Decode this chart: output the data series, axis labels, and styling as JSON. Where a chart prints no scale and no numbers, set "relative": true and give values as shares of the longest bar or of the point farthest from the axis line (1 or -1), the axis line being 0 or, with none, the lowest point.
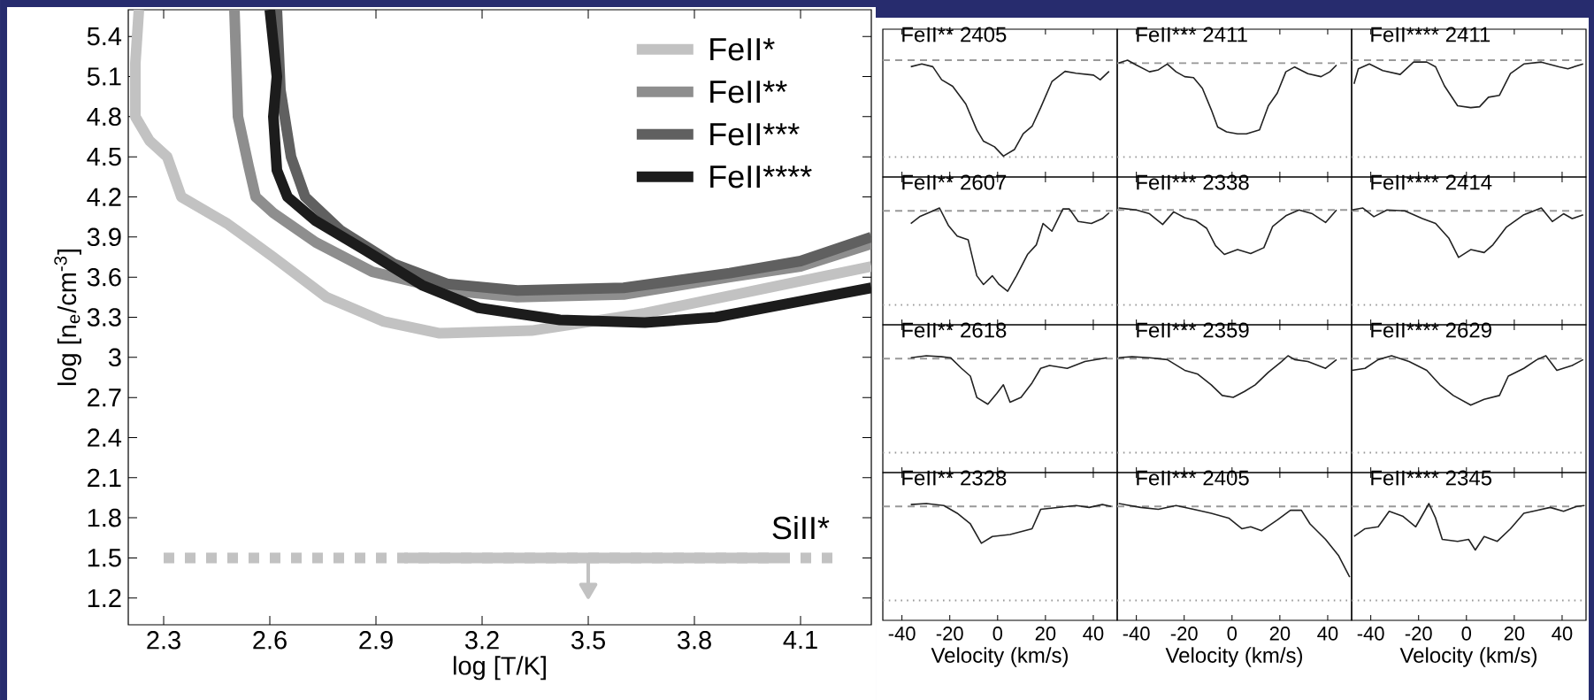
{
  "chart_data": [
    {
      "type": "line",
      "xlabel": "log [T/K]",
      "ylabel": "log [n$_{e}$/cm$^{-3}$]",
      "xlim": [
        2.2,
        4.3
      ],
      "ylim": [
        1.0,
        5.6
      ],
      "xticks": [
        2.3,
        2.6,
        2.9,
        3.2,
        3.5,
        3.8,
        4.1
      ],
      "yticks": [
        1.2,
        1.5,
        1.8,
        2.1,
        2.4,
        2.7,
        3,
        3.3,
        3.6,
        3.9,
        4.2,
        4.5,
        4.8,
        5.1,
        5.4
      ],
      "legend": "top right",
      "line_style": "solid",
      "series": [
        {
          "name": "FeII*",
          "color": "#c2c2c2",
          "x": [
            2.23,
            2.22,
            2.22,
            2.26,
            2.31,
            2.35,
            2.48,
            2.61,
            2.76,
            2.92,
            3.08,
            3.34,
            3.66,
            3.97,
            4.3
          ],
          "values": [
            5.6,
            5.2,
            4.8,
            4.62,
            4.5,
            4.2,
            4.0,
            3.75,
            3.45,
            3.27,
            3.18,
            3.2,
            3.33,
            3.5,
            3.68
          ]
        },
        {
          "name": "FeII**",
          "color": "#8e8e8e",
          "x": [
            2.5,
            2.51,
            2.54,
            2.56,
            2.61,
            2.73,
            2.89,
            3.11,
            3.3,
            3.6,
            3.9,
            4.1,
            4.3
          ],
          "values": [
            5.6,
            4.8,
            4.43,
            4.2,
            4.08,
            3.86,
            3.64,
            3.5,
            3.45,
            3.47,
            3.6,
            3.68,
            3.85
          ]
        },
        {
          "name": "FeII***",
          "color": "#606060",
          "x": [
            2.62,
            2.63,
            2.66,
            2.7,
            2.8,
            2.95,
            3.1,
            3.3,
            3.6,
            3.9,
            4.1,
            4.3
          ],
          "values": [
            5.6,
            5.0,
            4.5,
            4.2,
            3.95,
            3.7,
            3.55,
            3.5,
            3.52,
            3.63,
            3.72,
            3.9
          ]
        },
        {
          "name": "FeII****",
          "color": "#1c1c1c",
          "x": [
            2.6,
            2.62,
            2.61,
            2.62,
            2.65,
            2.73,
            2.87,
            3.03,
            3.19,
            3.42,
            3.66,
            3.86,
            4.08,
            4.3
          ],
          "values": [
            5.6,
            5.1,
            4.8,
            4.4,
            4.2,
            4.02,
            3.8,
            3.54,
            3.37,
            3.28,
            3.26,
            3.3,
            3.41,
            3.52
          ]
        },
        {
          "name": "SiII*",
          "color": "#c2c2c2",
          "line_style": "dashed",
          "x": [
            2.3,
            4.2
          ],
          "values": [
            1.5,
            1.5
          ]
        },
        {
          "color": "#c2c2c2",
          "x": [
            2.98,
            4.04
          ],
          "values": [
            1.5,
            1.5
          ]
        },
        {
          "color": "#c2c2c2",
          "marker": "triangle",
          "x": [
            3.5,
            3.5
          ],
          "values": [
            1.5,
            1.27
          ]
        }
      ]
    },
    {
      "type": "line",
      "relative": true,
      "title": "FeII** 2405",
      "xlim": [
        -48,
        50
      ],
      "xticks": [
        -40,
        -20,
        0,
        20,
        40
      ],
      "tick_labels": false,
      "ref_lines": [
        {
          "axis": "y",
          "value": 1.04,
          "line_style": "dashed",
          "color": "#999999"
        },
        {
          "axis": "y",
          "value": 0,
          "line_style": "dotted",
          "color": "#999999"
        }
      ],
      "series": [
        {
          "color": "#222222",
          "x": [
            -36.3,
            -31.7,
            -27.1,
            -23.4,
            -18.8,
            -13.3,
            -8.7,
            -5.9,
            -1.3,
            2.4,
            7.0,
            10.7,
            14.4,
            18.0,
            22.7,
            28.2,
            32.8,
            40.1,
            42.9,
            46.6
          ],
          "values": [
            0.97,
            1.0,
            0.97,
            0.83,
            0.76,
            0.57,
            0.29,
            0.17,
            0.11,
            0.01,
            0.08,
            0.25,
            0.33,
            0.53,
            0.81,
            0.92,
            0.9,
            0.88,
            0.83,
            0.92
          ]
        }
      ]
    },
    {
      "type": "line",
      "relative": true,
      "title": "FeII*** 2411",
      "xlim": [
        -48,
        50
      ],
      "xticks": [
        -40,
        -20,
        0,
        20,
        40
      ],
      "tick_labels": false,
      "ref_lines": [
        {
          "axis": "y",
          "value": 0.97,
          "line_style": "dashed",
          "color": "#999999"
        },
        {
          "axis": "y",
          "value": 0,
          "line_style": "dotted",
          "color": "#999999"
        }
      ],
      "series": [
        {
          "color": "#222222",
          "x": [
            -47.4,
            -43.7,
            -40,
            -34.5,
            -30.8,
            -27.1,
            -23.4,
            -19.8,
            -16.1,
            -12.4,
            -8.7,
            -6.0,
            -2.3,
            2.3,
            6.0,
            11.5,
            15.2,
            18.9,
            22.5,
            26.2,
            31.7,
            37.2,
            40.9,
            43.7
          ],
          "values": [
            0.97,
            1.0,
            0.95,
            0.88,
            0.9,
            0.96,
            0.88,
            0.83,
            0.82,
            0.71,
            0.49,
            0.31,
            0.26,
            0.24,
            0.24,
            0.28,
            0.53,
            0.66,
            0.88,
            0.93,
            0.86,
            0.83,
            0.88,
            0.95
          ]
        }
      ]
    },
    {
      "type": "line",
      "relative": true,
      "title": "FeII**** 2411",
      "xlim": [
        -48,
        50
      ],
      "xticks": [
        -40,
        -20,
        0,
        20,
        40
      ],
      "tick_labels": false,
      "ref_lines": [
        {
          "axis": "y",
          "value": 1.02,
          "line_style": "dashed",
          "color": "#999999"
        },
        {
          "axis": "y",
          "value": 0,
          "line_style": "dotted",
          "color": "#999999"
        }
      ],
      "series": [
        {
          "color": "#222222",
          "x": [
            -47.0,
            -45.2,
            -40.6,
            -35.0,
            -27.7,
            -22.1,
            -16.6,
            -12.9,
            -9.2,
            -3.7,
            1.8,
            5.5,
            9.2,
            13.8,
            18.4,
            24.0,
            31.3,
            38.7,
            42.4,
            48.8
          ],
          "values": [
            0.77,
            0.93,
            0.98,
            0.91,
            0.87,
            1.0,
            1.0,
            0.95,
            0.75,
            0.54,
            0.52,
            0.53,
            0.63,
            0.65,
            0.88,
            0.98,
            1.0,
            0.95,
            0.93,
            0.98
          ]
        }
      ]
    },
    {
      "type": "line",
      "relative": true,
      "title": "FeII** 2607",
      "xlim": [
        -48,
        50
      ],
      "xticks": [
        -40,
        -20,
        0,
        20,
        40
      ],
      "tick_labels": false,
      "ref_lines": [
        {
          "axis": "y",
          "value": 0.97,
          "line_style": "dashed",
          "color": "#999999"
        },
        {
          "axis": "y",
          "value": 0,
          "line_style": "dotted",
          "color": "#999999"
        }
      ],
      "series": [
        {
          "color": "#222222",
          "x": [
            -36.3,
            -32.6,
            -28.9,
            -24.3,
            -20.6,
            -16.9,
            -12.3,
            -8.7,
            -5.9,
            -2.2,
            0.6,
            4.2,
            7.9,
            12.5,
            16.2,
            19.0,
            22.7,
            27.3,
            30.0,
            33.7,
            39.2,
            43.8,
            46.6
          ],
          "values": [
            0.84,
            0.91,
            0.95,
            1.0,
            0.82,
            0.71,
            0.67,
            0.3,
            0.21,
            0.3,
            0.21,
            0.14,
            0.3,
            0.52,
            0.62,
            0.84,
            0.76,
            0.99,
            0.99,
            0.86,
            0.84,
            0.89,
            0.95
          ]
        }
      ]
    },
    {
      "type": "line",
      "relative": true,
      "title": "FeII*** 2338",
      "xlim": [
        -48,
        50
      ],
      "xticks": [
        -40,
        -20,
        0,
        20,
        40
      ],
      "tick_labels": false,
      "ref_lines": [
        {
          "axis": "y",
          "value": 0.98,
          "line_style": "dashed",
          "color": "#999999"
        },
        {
          "axis": "y",
          "value": 0,
          "line_style": "dotted",
          "color": "#999999"
        }
      ],
      "series": [
        {
          "color": "#222222",
          "x": [
            -47.4,
            -40,
            -34.5,
            -29.0,
            -24.4,
            -19.8,
            -15.2,
            -10.6,
            -6.9,
            -3.2,
            2.3,
            7.8,
            13.3,
            17.0,
            22.5,
            28.0,
            33.6,
            39.1,
            43.7
          ],
          "values": [
            1.0,
            0.98,
            0.94,
            0.83,
            0.96,
            0.9,
            0.87,
            0.79,
            0.61,
            0.52,
            0.57,
            0.53,
            0.59,
            0.81,
            0.92,
            0.98,
            0.94,
            0.85,
            0.98
          ]
        }
      ]
    },
    {
      "type": "line",
      "relative": true,
      "title": "FeII**** 2414",
      "xlim": [
        -48,
        50
      ],
      "xticks": [
        -40,
        -20,
        0,
        20,
        40
      ],
      "tick_labels": false,
      "ref_lines": [
        {
          "axis": "y",
          "value": 0.97,
          "line_style": "dashed",
          "color": "#999999"
        },
        {
          "axis": "y",
          "value": 0,
          "line_style": "dotted",
          "color": "#999999"
        }
      ],
      "series": [
        {
          "color": "#222222",
          "x": [
            -47.9,
            -43.3,
            -38.7,
            -33.2,
            -25.8,
            -18.4,
            -12.9,
            -7.4,
            -3.3,
            1.8,
            7.4,
            11.1,
            16.6,
            24.0,
            31.3,
            35.9,
            40.6,
            44.2,
            48.8
          ],
          "values": [
            0.98,
            1.0,
            0.91,
            0.98,
            0.97,
            0.89,
            0.84,
            0.69,
            0.49,
            0.57,
            0.54,
            0.62,
            0.8,
            0.93,
            1.0,
            0.86,
            0.94,
            0.89,
            0.93
          ]
        }
      ]
    },
    {
      "type": "line",
      "relative": true,
      "title": "FeII** 2618",
      "xlim": [
        -48,
        50
      ],
      "xticks": [
        -40,
        -20,
        0,
        20,
        40
      ],
      "tick_labels": false,
      "ref_lines": [
        {
          "axis": "y",
          "value": 0.97,
          "line_style": "dashed",
          "color": "#999999"
        },
        {
          "axis": "y",
          "value": 0,
          "line_style": "dotted",
          "color": "#999999"
        }
      ],
      "series": [
        {
          "color": "#222222",
          "x": [
            -36.3,
            -29.8,
            -23.4,
            -19.7,
            -15.1,
            -11.4,
            -8.7,
            -4.1,
            -0.4,
            2.4,
            5.2,
            9.8,
            14.4,
            18.0,
            21.7,
            29.1,
            36.5,
            45.7
          ],
          "values": [
            0.98,
            1.0,
            0.99,
            0.98,
            0.87,
            0.79,
            0.57,
            0.5,
            0.61,
            0.7,
            0.52,
            0.57,
            0.72,
            0.87,
            0.9,
            0.87,
            0.94,
            0.98
          ]
        }
      ]
    },
    {
      "type": "line",
      "relative": true,
      "title": "FeII*** 2359",
      "xlim": [
        -48,
        50
      ],
      "xticks": [
        -40,
        -20,
        0,
        20,
        40
      ],
      "tick_labels": false,
      "ref_lines": [
        {
          "axis": "y",
          "value": 0.97,
          "line_style": "dashed",
          "color": "#999999"
        },
        {
          "axis": "y",
          "value": 0,
          "line_style": "dotted",
          "color": "#999999"
        }
      ],
      "series": [
        {
          "color": "#222222",
          "x": [
            -47.4,
            -41.8,
            -34.5,
            -27.1,
            -19.8,
            -14.3,
            -8.7,
            -4.1,
            0.5,
            5.1,
            9.7,
            15.2,
            20.7,
            23.4,
            26.2,
            31.7,
            39.1,
            43.7
          ],
          "values": [
            0.98,
            0.99,
            0.98,
            0.96,
            0.85,
            0.81,
            0.7,
            0.59,
            0.57,
            0.63,
            0.7,
            0.83,
            0.94,
            1.0,
            0.96,
            0.94,
            0.87,
            0.96
          ]
        }
      ]
    },
    {
      "type": "line",
      "relative": true,
      "title": "FeII**** 2629",
      "xlim": [
        -48,
        50
      ],
      "xticks": [
        -40,
        -20,
        0,
        20,
        40
      ],
      "tick_labels": false,
      "ref_lines": [
        {
          "axis": "y",
          "value": 0.97,
          "line_style": "dashed",
          "color": "#999999"
        },
        {
          "axis": "y",
          "value": 0,
          "line_style": "dotted",
          "color": "#999999"
        }
      ],
      "series": [
        {
          "color": "#222222",
          "x": [
            -47.9,
            -42.4,
            -36.9,
            -31.3,
            -24.0,
            -16.6,
            -11.1,
            -5.5,
            1.8,
            7.4,
            13.8,
            17.5,
            24.0,
            29.5,
            33.2,
            37.8,
            44.2,
            48.8
          ],
          "values": [
            0.85,
            0.87,
            0.96,
            1.0,
            0.94,
            0.85,
            0.7,
            0.59,
            0.49,
            0.55,
            0.59,
            0.79,
            0.87,
            0.96,
            1.0,
            0.85,
            0.9,
            0.96
          ]
        }
      ]
    },
    {
      "type": "line",
      "relative": true,
      "title": "FeII** 2328",
      "xlabel": "Velocity (km/s)",
      "xlim": [
        -48,
        50
      ],
      "xticks": [
        -40,
        -20,
        0,
        20,
        40
      ],
      "tick_labels": "x",
      "ref_lines": [
        {
          "axis": "y",
          "value": 0.97,
          "line_style": "dashed",
          "color": "#999999"
        },
        {
          "axis": "y",
          "value": 0,
          "line_style": "dotted",
          "color": "#999999"
        }
      ],
      "series": [
        {
          "color": "#222222",
          "x": [
            -36.3,
            -29.8,
            -22.5,
            -16.9,
            -11.4,
            -6.8,
            -2.2,
            5.2,
            14.4,
            18.0,
            25.4,
            32.8,
            38.3,
            43.8,
            47.5
          ],
          "values": [
            0.99,
            1.0,
            0.98,
            0.9,
            0.79,
            0.59,
            0.66,
            0.68,
            0.74,
            0.94,
            0.96,
            0.98,
            0.96,
            0.99,
            0.97
          ]
        }
      ]
    },
    {
      "type": "line",
      "relative": true,
      "title": "FeII*** 2405",
      "xlabel": "Velocity (km/s)",
      "xlim": [
        -48,
        50
      ],
      "xticks": [
        -40,
        -20,
        0,
        20,
        40
      ],
      "tick_labels": "x",
      "ref_lines": [
        {
          "axis": "y",
          "value": 0.97,
          "line_style": "dashed",
          "color": "#999999"
        },
        {
          "axis": "y",
          "value": 0,
          "line_style": "dotted",
          "color": "#999999"
        }
      ],
      "series": [
        {
          "color": "#222222",
          "x": [
            -47.4,
            -38.2,
            -30.8,
            -23.4,
            -16.1,
            -8.7,
            -1.4,
            4.1,
            7.8,
            12.4,
            18.9,
            24.4,
            29.0,
            32.6,
            39.1,
            44.6,
            49.2
          ],
          "values": [
            1.0,
            0.96,
            0.94,
            0.98,
            0.94,
            0.9,
            0.85,
            0.74,
            0.76,
            0.72,
            0.83,
            0.93,
            0.93,
            0.79,
            0.63,
            0.46,
            0.24
          ]
        }
      ]
    },
    {
      "type": "line",
      "relative": true,
      "title": "FeII**** 2345",
      "xlabel": "Velocity (km/s)",
      "xlim": [
        -48,
        50
      ],
      "xticks": [
        -40,
        -20,
        0,
        20,
        40
      ],
      "tick_labels": "x",
      "ref_lines": [
        {
          "axis": "y",
          "value": 0.97,
          "line_style": "dashed",
          "color": "#999999"
        },
        {
          "axis": "y",
          "value": 0,
          "line_style": "dotted",
          "color": "#999999"
        }
      ],
      "series": [
        {
          "color": "#222222",
          "x": [
            -47.0,
            -42.4,
            -36.9,
            -32.3,
            -26.7,
            -21.2,
            -17.5,
            -15.7,
            -12.9,
            -10.1,
            -3.7,
            0.9,
            3.7,
            7.4,
            12.9,
            18.4,
            24.0,
            29.5,
            35.0,
            40.6,
            46.1,
            49.4
          ],
          "values": [
            0.66,
            0.74,
            0.76,
            0.92,
            0.87,
            0.76,
            0.92,
            1.0,
            0.85,
            0.63,
            0.61,
            0.63,
            0.52,
            0.66,
            0.61,
            0.74,
            0.9,
            0.93,
            0.96,
            0.92,
            0.97,
            0.98
          ]
        }
      ]
    }
  ]
}
